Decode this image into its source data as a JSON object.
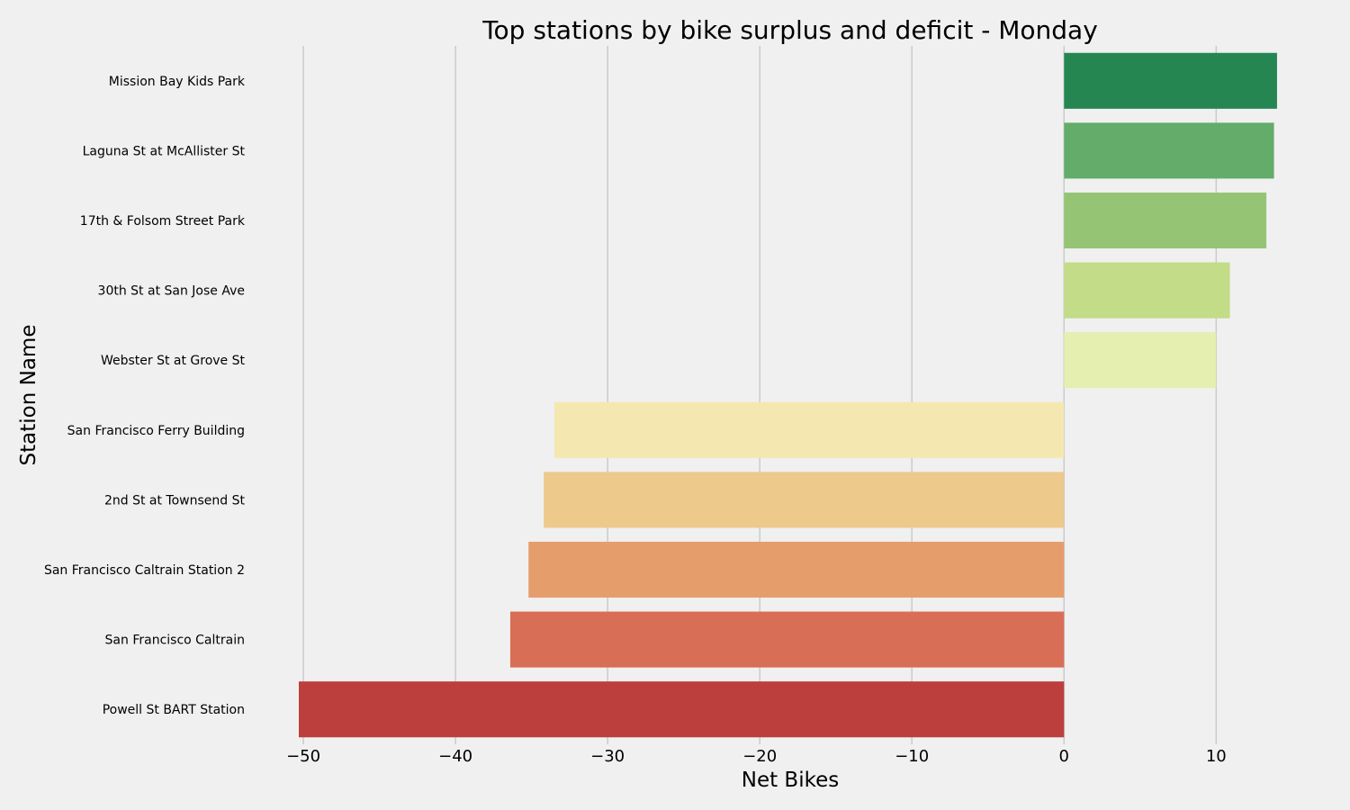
{
  "chart_data": {
    "type": "bar",
    "orientation": "horizontal",
    "title": "Top stations by bike surplus and deficit - Monday",
    "xlabel": "Net Bikes",
    "ylabel": "Station Name",
    "xlim": [
      -50.3,
      14.3
    ],
    "xticks": [
      -50,
      -40,
      -30,
      -20,
      -10,
      0,
      10
    ],
    "grid": "vertical",
    "categories": [
      "Mission Bay Kids Park",
      "Laguna St at McAllister St",
      "17th & Folsom Street Park",
      "30th St at San Jose Ave",
      "Webster St at Grove St",
      "San Francisco Ferry Building",
      "2nd St at Townsend St",
      "San Francisco Caltrain Station 2",
      "San Francisco Caltrain",
      "Powell St BART Station"
    ],
    "values": [
      14,
      13.8,
      13.3,
      10.9,
      10,
      -33.5,
      -34.2,
      -35.2,
      -36.4,
      -50.3
    ],
    "colors": [
      "#268652",
      "#63ac6a",
      "#95c574",
      "#c2dc88",
      "#e4efb0",
      "#f4e8b0",
      "#edc98c",
      "#e69d6c",
      "#d86e55",
      "#bd3f3d"
    ]
  }
}
